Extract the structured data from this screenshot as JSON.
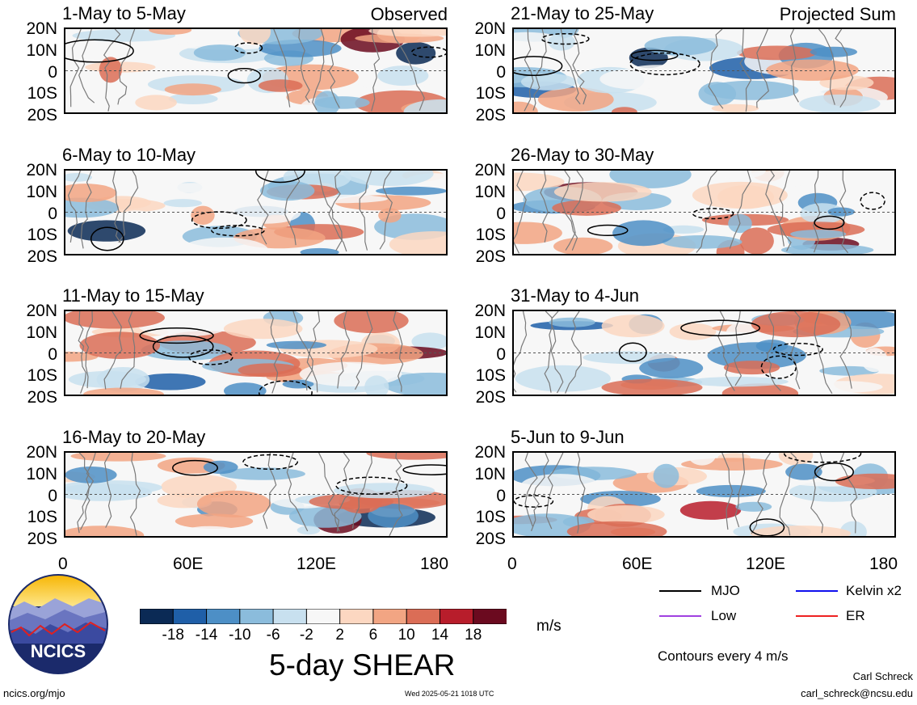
{
  "chart_data": {
    "type": "heatmap",
    "field": "5-day SHEAR",
    "units": "m/s",
    "contour_note": "Contours every 4 m/s",
    "lat_ticks": [
      "20N",
      "10N",
      "0",
      "10S",
      "20S"
    ],
    "lon_ticks": [
      "0",
      "60E",
      "120E",
      "180"
    ],
    "colorbar": {
      "ticks": [
        "-18",
        "-14",
        "-10",
        "-6",
        "-2",
        "2",
        "6",
        "10",
        "14",
        "18"
      ],
      "colors": [
        "#0b2a55",
        "#1f5fa8",
        "#4d8fc6",
        "#8bbcdc",
        "#c8e0ef",
        "#f7f7f7",
        "#fcd7c1",
        "#f2a583",
        "#db6d56",
        "#b81d2b",
        "#6b0a1f"
      ]
    },
    "legend": [
      {
        "name": "MJO",
        "color": "#000000"
      },
      {
        "name": "Kelvin x2",
        "color": "#1010ee"
      },
      {
        "name": "Low",
        "color": "#a040e0"
      },
      {
        "name": "ER",
        "color": "#ee2222"
      }
    ],
    "panels": [
      {
        "title": "1-May to 5-May",
        "label": "Observed"
      },
      {
        "title": "21-May to 25-May",
        "label": "Projected Sum"
      },
      {
        "title": "6-May to 10-May",
        "label": ""
      },
      {
        "title": "26-May to 30-May",
        "label": ""
      },
      {
        "title": "11-May to 15-May",
        "label": ""
      },
      {
        "title": "31-May to 4-Jun",
        "label": ""
      },
      {
        "title": "16-May to 20-May",
        "label": ""
      },
      {
        "title": "5-Jun to 9-Jun",
        "label": ""
      }
    ]
  },
  "footer": {
    "logo_text": "NCICS",
    "website": "ncics.org/mjo",
    "timestamp": "Wed 2025-05-21 1018 UTC",
    "author": "Carl Schreck",
    "email": "carl_schreck@ncsu.edu"
  }
}
